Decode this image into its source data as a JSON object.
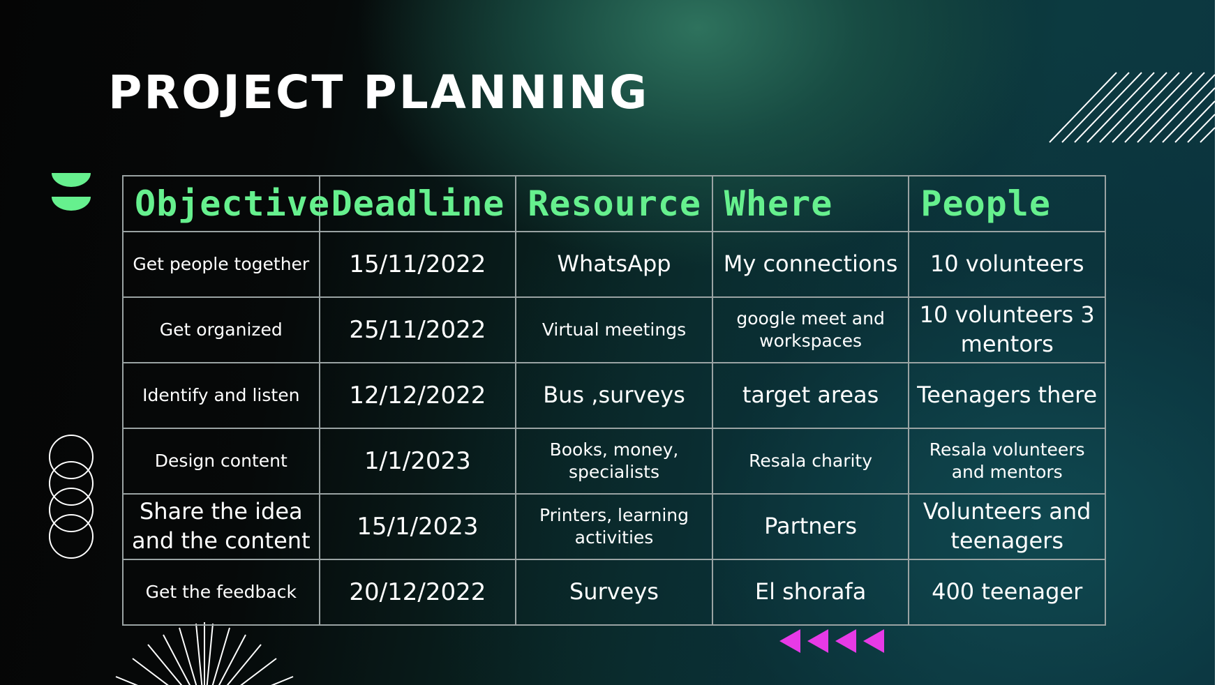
{
  "slide": {
    "title": "PROJECT PLANNING",
    "colors": {
      "accent_green": "#66f08e",
      "accent_magenta": "#e73ae6",
      "text": "#ffffff",
      "grid": "#9aa3a3"
    },
    "decorations": [
      "green-half-circles-icon",
      "diagonal-lines-icon",
      "stacked-circles-icon",
      "sunburst-lines-icon",
      "rewind-triangles-icon"
    ]
  },
  "table": {
    "headers": [
      "Objective",
      "Deadline",
      "Resource",
      "Where",
      "People"
    ],
    "rows": [
      [
        "Get people together",
        "15/11/2022",
        "WhatsApp",
        "My connections",
        "10 volunteers"
      ],
      [
        "Get organized",
        "25/11/2022",
        "Virtual meetings",
        "google meet and workspaces",
        "10 volunteers 3 mentors"
      ],
      [
        "Identify and listen",
        "12/12/2022",
        "Bus ,surveys",
        "target areas",
        "Teenagers there"
      ],
      [
        "Design content",
        "1/1/2023",
        "Books, money, specialists",
        "Resala charity",
        "Resala volunteers and mentors"
      ],
      [
        "Share the idea and the content",
        "15/1/2023",
        "Printers, learning activities",
        "Partners",
        "Volunteers and teenagers"
      ],
      [
        "Get the feedback",
        "20/12/2022",
        "Surveys",
        "El shorafa",
        "400 teenager"
      ]
    ]
  }
}
